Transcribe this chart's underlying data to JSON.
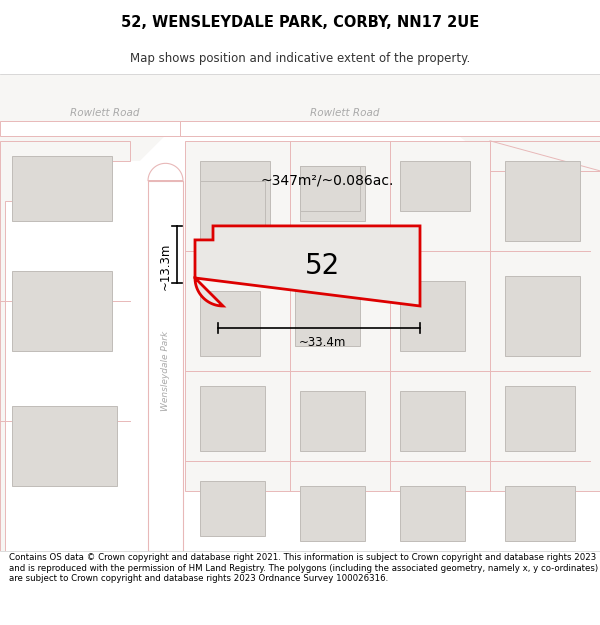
{
  "title": "52, WENSLEYDALE PARK, CORBY, NN17 2UE",
  "subtitle": "Map shows position and indicative extent of the property.",
  "footer": "Contains OS data © Crown copyright and database right 2021. This information is subject to Crown copyright and database rights 2023 and is reproduced with the permission of HM Land Registry. The polygons (including the associated geometry, namely x, y co-ordinates) are subject to Crown copyright and database rights 2023 Ordnance Survey 100026316.",
  "map_bg": "#f7f6f4",
  "road_color": "#ffffff",
  "road_outline": "#e8b8b8",
  "block_outline": "#e8b8b8",
  "property_fill": "#eae8e5",
  "property_outline": "#dd0000",
  "building_fill": "#dddad6",
  "building_outline": "#c0bcb8",
  "text_road": "#aaaaaa",
  "text_dim": "#111111",
  "area_text": "~347m²/~0.086ac.",
  "width_text": "~33.4m",
  "height_text": "~13.3m",
  "number_text": "52",
  "road1_text": "Rowlett Road",
  "road2_text": "Rowlett Road",
  "road3_text": "Wensleydale Park"
}
